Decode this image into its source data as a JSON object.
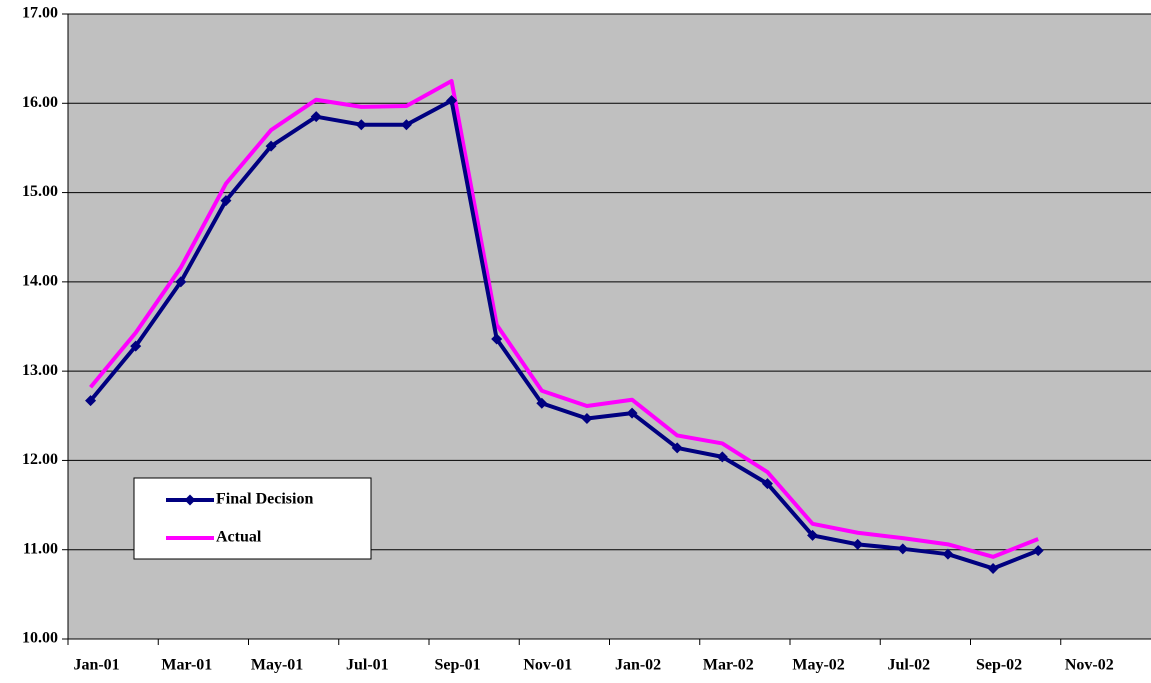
{
  "chart_data": {
    "type": "line",
    "categories": [
      "Jan-01",
      null,
      "Mar-01",
      null,
      "May-01",
      null,
      "Jul-01",
      null,
      "Sep-01",
      null,
      "Nov-01",
      null,
      "Jan-02",
      null,
      "Mar-02",
      null,
      "May-02",
      null,
      "Jul-02",
      null,
      "Sep-02",
      null,
      "Nov-02",
      null
    ],
    "series": [
      {
        "name": "Final Decision",
        "color": "#000080",
        "marker": "diamond",
        "values": [
          12.67,
          13.28,
          14.0,
          14.91,
          15.52,
          15.85,
          15.76,
          15.76,
          16.03,
          13.36,
          12.64,
          12.47,
          12.53,
          12.14,
          12.04,
          11.74,
          11.16,
          11.06,
          11.01,
          10.95,
          10.79,
          10.99,
          null,
          null
        ]
      },
      {
        "name": "Actual",
        "color": "#ff00ff",
        "values": [
          12.82,
          13.43,
          14.16,
          15.1,
          15.7,
          16.04,
          15.96,
          15.97,
          16.25,
          13.52,
          12.78,
          12.61,
          12.68,
          12.28,
          12.19,
          11.87,
          11.29,
          11.19,
          11.13,
          11.06,
          10.92,
          11.12,
          null,
          null
        ]
      }
    ],
    "ylim": [
      10,
      17
    ],
    "yticks": [
      {
        "value": 10,
        "label": "10.00"
      },
      {
        "value": 11,
        "label": "11.00"
      },
      {
        "value": 12,
        "label": "12.00"
      },
      {
        "value": 13,
        "label": "13.00"
      },
      {
        "value": 14,
        "label": "14.00"
      },
      {
        "value": 15,
        "label": "15.00"
      },
      {
        "value": 16,
        "label": "16.00"
      },
      {
        "value": 17,
        "label": "17.00"
      }
    ],
    "grid": true,
    "plot_background": "#c0c0c0",
    "legend": "lower left"
  }
}
